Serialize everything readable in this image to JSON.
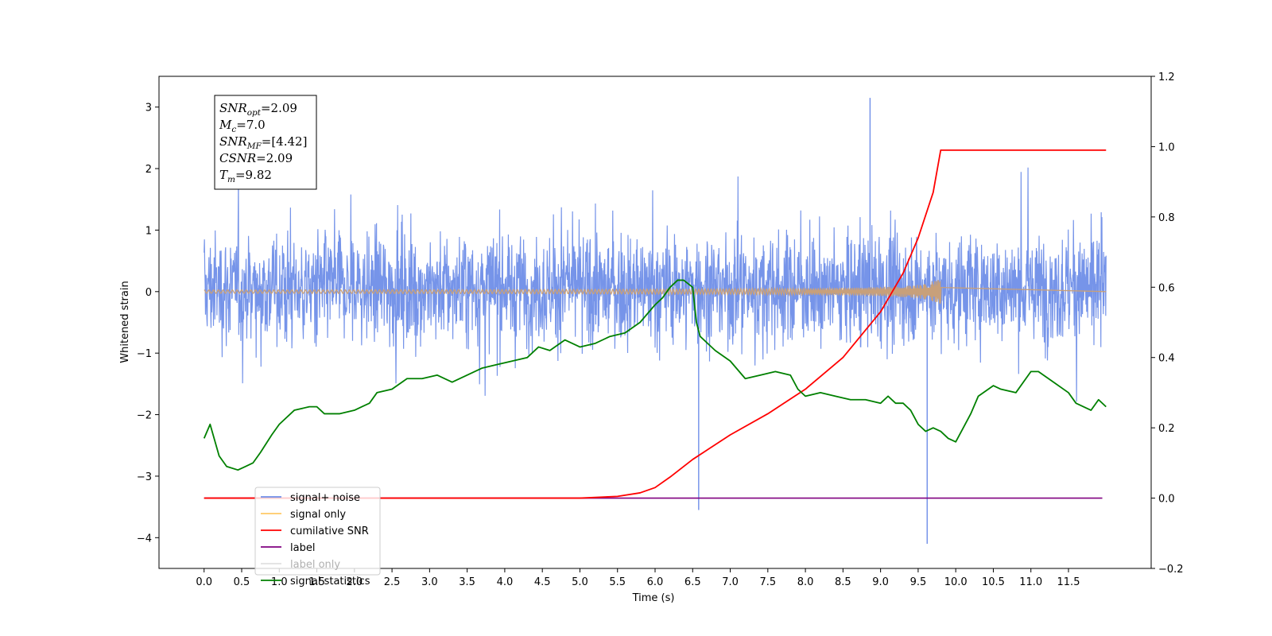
{
  "chart_data": {
    "type": "line",
    "title": "",
    "xlabel": "Time (s)",
    "ylabel": "Whitened strain",
    "ylabel_right": "",
    "xlim": [
      -0.6,
      12.6
    ],
    "ylim": [
      -4.5,
      3.5
    ],
    "ylim_right": [
      -0.2,
      1.2
    ],
    "xticks": [
      "0.0",
      "0.5",
      "1.0",
      "1.5",
      "2.0",
      "2.5",
      "3.0",
      "3.5",
      "4.0",
      "4.5",
      "5.0",
      "5.5",
      "6.0",
      "6.5",
      "7.0",
      "7.5",
      "8.0",
      "8.5",
      "9.0",
      "9.5",
      "10.0",
      "10.5",
      "11.0",
      "11.5"
    ],
    "yticks": [
      "−4",
      "−3",
      "−2",
      "−1",
      "0",
      "1",
      "2",
      "3"
    ],
    "yticks_right": [
      "−0.2",
      "0.0",
      "0.2",
      "0.4",
      "0.6",
      "0.8",
      "1.0",
      "1.2"
    ],
    "grid": false,
    "legend_position": "lower-left",
    "annotation": {
      "lines": [
        {
          "sym": "SNR",
          "sub": "opt",
          "val": "=2.09"
        },
        {
          "sym": "M",
          "sub": "c",
          "val": "=7.0"
        },
        {
          "sym": "SNR",
          "sub": "MF",
          "val": "=[4.42]"
        },
        {
          "sym": "CSNR",
          "sub": "",
          "val": "=2.09"
        },
        {
          "sym": "T",
          "sub": "m",
          "val": "=9.82"
        }
      ]
    },
    "series": [
      {
        "name": "signal+ noise",
        "color": "#6f8ee8",
        "axis": "left",
        "kind": "noise",
        "x_range": [
          0.0,
          12.0
        ],
        "summary": {
          "typical_min": -2.0,
          "typical_max": 2.2,
          "extreme_max": 3.15,
          "extreme_min": -4.1,
          "extreme_max_at": 8.86,
          "extreme_min_at": 9.62
        }
      },
      {
        "name": "signal only",
        "color": "#ffc966",
        "axis": "left",
        "kind": "chirp",
        "x_range": [
          0.0,
          9.82
        ],
        "peak_amplitude": 0.22
      },
      {
        "name": "cumilative SNR",
        "color": "#ff0000",
        "axis": "right",
        "x": [
          0.0,
          5.0,
          5.5,
          5.8,
          6.0,
          6.2,
          6.5,
          7.0,
          7.5,
          8.0,
          8.5,
          9.0,
          9.3,
          9.5,
          9.7,
          9.8,
          12.0
        ],
        "y": [
          0.0,
          0.0,
          0.005,
          0.015,
          0.03,
          0.06,
          0.11,
          0.18,
          0.24,
          0.31,
          0.4,
          0.53,
          0.64,
          0.74,
          0.87,
          0.99,
          0.99
        ]
      },
      {
        "name": "label",
        "color": "#800080",
        "axis": "right",
        "x": [
          0.0,
          11.95
        ],
        "y": [
          0.0,
          0.0
        ]
      },
      {
        "name": "label only",
        "color": "#e0e0e0",
        "axis": "right",
        "x": [],
        "y": []
      },
      {
        "name": "signal statistics",
        "color": "#008000",
        "axis": "right",
        "x": [
          0.0,
          0.08,
          0.2,
          0.3,
          0.45,
          0.55,
          0.65,
          0.75,
          0.9,
          1.0,
          1.2,
          1.4,
          1.5,
          1.6,
          1.8,
          2.0,
          2.1,
          2.2,
          2.3,
          2.5,
          2.7,
          2.9,
          3.1,
          3.3,
          3.5,
          3.7,
          3.9,
          4.1,
          4.3,
          4.45,
          4.6,
          4.8,
          5.0,
          5.2,
          5.4,
          5.6,
          5.8,
          6.0,
          6.1,
          6.2,
          6.3,
          6.38,
          6.5,
          6.55,
          6.6,
          6.7,
          6.8,
          7.0,
          7.2,
          7.4,
          7.6,
          7.8,
          7.9,
          8.0,
          8.2,
          8.4,
          8.6,
          8.8,
          9.0,
          9.1,
          9.2,
          9.3,
          9.4,
          9.5,
          9.6,
          9.7,
          9.8,
          9.9,
          10.0,
          10.1,
          10.2,
          10.3,
          10.5,
          10.6,
          10.8,
          11.0,
          11.1,
          11.3,
          11.5,
          11.6,
          11.8,
          11.9,
          12.0
        ],
        "y": [
          0.17,
          0.21,
          0.12,
          0.09,
          0.08,
          0.09,
          0.1,
          0.13,
          0.18,
          0.21,
          0.25,
          0.26,
          0.26,
          0.24,
          0.24,
          0.25,
          0.26,
          0.27,
          0.3,
          0.31,
          0.34,
          0.34,
          0.35,
          0.33,
          0.35,
          0.37,
          0.38,
          0.39,
          0.4,
          0.43,
          0.42,
          0.45,
          0.43,
          0.44,
          0.46,
          0.47,
          0.5,
          0.55,
          0.57,
          0.6,
          0.62,
          0.62,
          0.6,
          0.5,
          0.46,
          0.44,
          0.42,
          0.39,
          0.34,
          0.35,
          0.36,
          0.35,
          0.31,
          0.29,
          0.3,
          0.29,
          0.28,
          0.28,
          0.27,
          0.29,
          0.27,
          0.27,
          0.25,
          0.21,
          0.19,
          0.2,
          0.19,
          0.17,
          0.16,
          0.2,
          0.24,
          0.29,
          0.32,
          0.31,
          0.3,
          0.36,
          0.36,
          0.33,
          0.3,
          0.27,
          0.25,
          0.28,
          0.26
        ]
      }
    ]
  }
}
